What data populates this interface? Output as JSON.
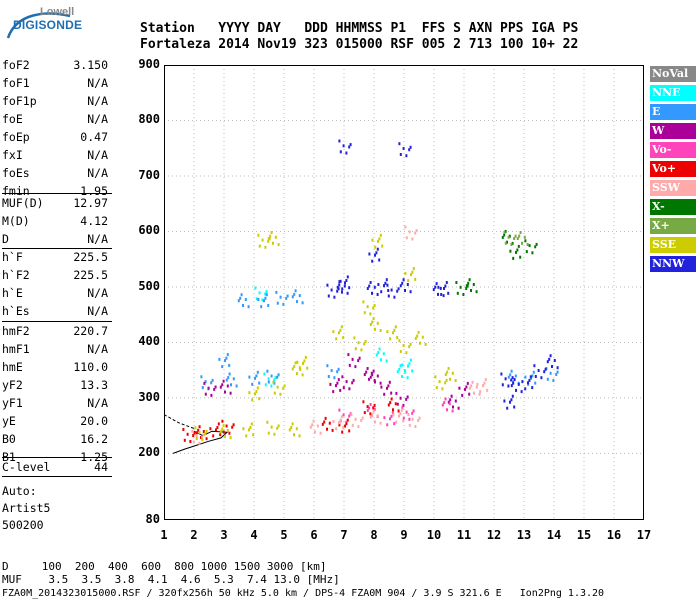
{
  "logo": {
    "line1": "Lowell",
    "line2": "DIGISONDE"
  },
  "header": {
    "labels": "Station   YYYY DAY   DDD HHMMSS P1  FFS S AXN PPS IGA PS",
    "values": "Fortaleza 2014 Nov19 323 015000 RSF 005 2 713 100 10+ 22"
  },
  "params": [
    {
      "name": "foF2",
      "value": "3.150"
    },
    {
      "name": "foF1",
      "value": "N/A"
    },
    {
      "name": "foF1p",
      "value": "N/A"
    },
    {
      "name": "foE",
      "value": "N/A"
    },
    {
      "name": "foEp",
      "value": "0.47"
    },
    {
      "name": "fxI",
      "value": "N/A"
    },
    {
      "name": "foEs",
      "value": "N/A"
    },
    {
      "name": "fmin",
      "value": "1.95"
    },
    {
      "name": "MUF(D)",
      "value": "12.97"
    },
    {
      "name": "M(D)",
      "value": "4.12"
    },
    {
      "name": "D",
      "value": "N/A"
    },
    {
      "name": "h`F",
      "value": "225.5"
    },
    {
      "name": "h`F2",
      "value": "225.5"
    },
    {
      "name": "h`E",
      "value": "N/A"
    },
    {
      "name": "h`Es",
      "value": "N/A"
    },
    {
      "name": "hmF2",
      "value": "220.7"
    },
    {
      "name": "hmF1",
      "value": "N/A"
    },
    {
      "name": "hmE",
      "value": "110.0"
    },
    {
      "name": "yF2",
      "value": "13.3"
    },
    {
      "name": "yF1",
      "value": "N/A"
    },
    {
      "name": "yE",
      "value": "20.0"
    },
    {
      "name": "B0",
      "value": "16.2"
    },
    {
      "name": "B1",
      "value": "1.25"
    },
    {
      "name": "C-level",
      "value": "44"
    }
  ],
  "autoscaling": {
    "line1": "Auto:",
    "line2": "Artist5",
    "line3": "500200"
  },
  "legend": [
    {
      "label": "NoVal",
      "color": "#888888",
      "text": "#ffffff"
    },
    {
      "label": "NNE",
      "color": "#00ffff",
      "text": "#ffffff"
    },
    {
      "label": "E",
      "color": "#3399ff",
      "text": "#ffffff"
    },
    {
      "label": "W",
      "color": "#aa0099",
      "text": "#ffffff"
    },
    {
      "label": "Vo-",
      "color": "#ff44bb",
      "text": "#ffffff"
    },
    {
      "label": "Vo+",
      "color": "#ee0000",
      "text": "#ffffff"
    },
    {
      "label": "SSW",
      "color": "#ffaaaa",
      "text": "#ffffff"
    },
    {
      "label": "X-",
      "color": "#007700",
      "text": "#ffffff"
    },
    {
      "label": "X+",
      "color": "#77aa44",
      "text": "#ffffff"
    },
    {
      "label": "SSE",
      "color": "#cccc00",
      "text": "#ffffff"
    },
    {
      "label": "NNW",
      "color": "#2222dd",
      "text": "#ffffff"
    }
  ],
  "bottom": {
    "d_line": "D     100  200  400  600  800 1000 1500 3000 [km]",
    "muf_line": "MUF    3.5  3.5  3.8  4.1  4.6  5.3  7.4 13.0 [MHz]",
    "file_line": "FZA0M_2014323015000.RSF / 320fx256h 50 kHz 5.0 km / DPS-4 FZA0M 904 / 3.9 S 321.6 E   Ion2Png 1.3.20"
  },
  "chart_data": {
    "type": "scatter",
    "title": "",
    "xlabel": "",
    "ylabel": "",
    "xlim": [
      1,
      17
    ],
    "ylim": [
      80,
      900
    ],
    "x_ticks": [
      1,
      2,
      3,
      4,
      5,
      6,
      7,
      8,
      9,
      10,
      11,
      12,
      13,
      14,
      15,
      16,
      17
    ],
    "y_ticks": [
      80,
      200,
      300,
      400,
      500,
      600,
      700,
      800,
      900
    ],
    "grid": true,
    "legend_position": "right",
    "series": [
      {
        "name": "NNE",
        "color": "#00ffff",
        "points": [
          [
            4.2,
            490
          ],
          [
            8.2,
            380
          ],
          [
            9.1,
            360
          ],
          [
            4.5,
            335
          ],
          [
            8.9,
            350
          ]
        ]
      },
      {
        "name": "E",
        "color": "#3399ff",
        "points": [
          [
            2.4,
            330
          ],
          [
            3.2,
            335
          ],
          [
            4.0,
            338
          ],
          [
            4.6,
            340
          ],
          [
            3.6,
            478
          ],
          [
            4.3,
            478
          ],
          [
            4.9,
            482
          ],
          [
            5.4,
            485
          ],
          [
            3.0,
            370
          ],
          [
            6.6,
            350
          ],
          [
            12.6,
            340
          ],
          [
            13.2,
            338
          ],
          [
            13.9,
            345
          ]
        ]
      },
      {
        "name": "W",
        "color": "#aa0099",
        "points": [
          [
            2.5,
            318
          ],
          [
            3.0,
            322
          ],
          [
            6.7,
            325
          ],
          [
            7.1,
            330
          ],
          [
            8.0,
            340
          ],
          [
            8.4,
            320
          ],
          [
            8.9,
            300
          ],
          [
            10.6,
            295
          ],
          [
            11.0,
            318
          ],
          [
            7.3,
            370
          ],
          [
            7.8,
            345
          ]
        ]
      },
      {
        "name": "Vo-",
        "color": "#ff44bb",
        "points": [
          [
            7.0,
            270
          ],
          [
            7.9,
            280
          ],
          [
            8.5,
            265
          ],
          [
            9.1,
            275
          ],
          [
            10.4,
            290
          ]
        ]
      },
      {
        "name": "Vo+",
        "color": "#ee0000",
        "points": [
          [
            1.8,
            235
          ],
          [
            2.2,
            240
          ],
          [
            2.7,
            245
          ],
          [
            3.1,
            250
          ],
          [
            6.4,
            255
          ],
          [
            7.0,
            252
          ],
          [
            7.8,
            285
          ],
          [
            8.6,
            290
          ]
        ]
      },
      {
        "name": "SSW",
        "color": "#ffaaaa",
        "points": [
          [
            2.1,
            232
          ],
          [
            6.0,
            250
          ],
          [
            6.8,
            258
          ],
          [
            7.4,
            262
          ],
          [
            8.0,
            268
          ],
          [
            8.8,
            270
          ],
          [
            9.3,
            262
          ],
          [
            11.3,
            320
          ],
          [
            11.6,
            325
          ],
          [
            9.2,
            600
          ]
        ]
      },
      {
        "name": "X-",
        "color": "#007700",
        "points": [
          [
            10.9,
            500
          ],
          [
            11.2,
            505
          ],
          [
            12.7,
            565
          ],
          [
            13.2,
            575
          ],
          [
            12.4,
            592
          ]
        ]
      },
      {
        "name": "X+",
        "color": "#77aa44",
        "points": [
          [
            12.5,
            590
          ],
          [
            12.9,
            590
          ]
        ]
      },
      {
        "name": "SSE",
        "color": "#cccc00",
        "points": [
          [
            2.2,
            238
          ],
          [
            3.0,
            242
          ],
          [
            3.8,
            245
          ],
          [
            4.6,
            248
          ],
          [
            5.3,
            245
          ],
          [
            4.0,
            310
          ],
          [
            4.8,
            320
          ],
          [
            5.4,
            355
          ],
          [
            5.6,
            365
          ],
          [
            4.3,
            585
          ],
          [
            4.6,
            590
          ],
          [
            6.8,
            420
          ],
          [
            7.5,
            400
          ],
          [
            8.0,
            435
          ],
          [
            8.6,
            420
          ],
          [
            9.0,
            395
          ],
          [
            9.5,
            410
          ],
          [
            9.2,
            525
          ],
          [
            10.2,
            330
          ],
          [
            10.5,
            345
          ],
          [
            8.1,
            585
          ],
          [
            7.8,
            465
          ]
        ]
      },
      {
        "name": "NNW",
        "color": "#2222dd",
        "points": [
          [
            6.6,
            495
          ],
          [
            6.9,
            502
          ],
          [
            7.0,
            510
          ],
          [
            7.0,
            755
          ],
          [
            7.9,
            500
          ],
          [
            8.3,
            505
          ],
          [
            8.6,
            495
          ],
          [
            9.0,
            505
          ],
          [
            8.0,
            560
          ],
          [
            9.0,
            750
          ],
          [
            10.1,
            498
          ],
          [
            10.3,
            500
          ],
          [
            12.4,
            335
          ],
          [
            12.7,
            325
          ],
          [
            13.1,
            330
          ],
          [
            13.5,
            350
          ],
          [
            13.9,
            368
          ],
          [
            12.5,
            295
          ]
        ]
      }
    ]
  }
}
